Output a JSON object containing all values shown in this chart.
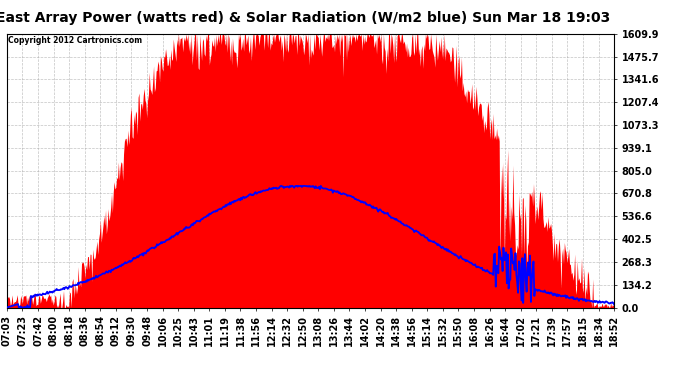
{
  "title": "East Array Power (watts red) & Solar Radiation (W/m2 blue) Sun Mar 18 19:03",
  "copyright": "Copyright 2012 Cartronics.com",
  "y_ticks": [
    0.0,
    134.2,
    268.3,
    402.5,
    536.6,
    670.8,
    805.0,
    939.1,
    1073.3,
    1207.4,
    1341.6,
    1475.7,
    1609.9
  ],
  "x_labels": [
    "07:03",
    "07:23",
    "07:42",
    "08:00",
    "08:18",
    "08:36",
    "08:54",
    "09:12",
    "09:30",
    "09:48",
    "10:06",
    "10:25",
    "10:43",
    "11:01",
    "11:19",
    "11:38",
    "11:56",
    "12:14",
    "12:32",
    "12:50",
    "13:08",
    "13:26",
    "13:44",
    "14:02",
    "14:20",
    "14:38",
    "14:56",
    "15:14",
    "15:32",
    "15:50",
    "16:08",
    "16:26",
    "16:44",
    "17:02",
    "17:21",
    "17:39",
    "17:57",
    "18:15",
    "18:34",
    "18:52"
  ],
  "ymax": 1609.9,
  "bg_color": "#ffffff",
  "fill_color": "#ff0000",
  "line_color": "#0000ff",
  "grid_color": "#aaaaaa",
  "title_fontsize": 10,
  "tick_fontsize": 7
}
